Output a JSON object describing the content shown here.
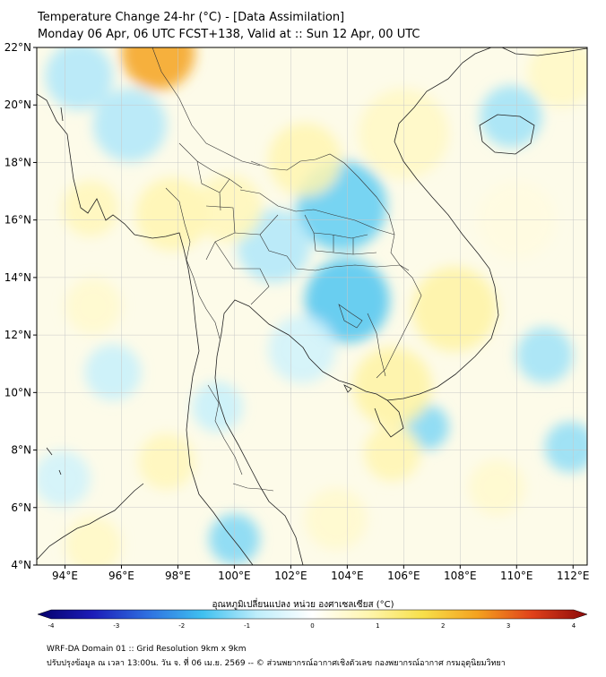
{
  "title": {
    "line1": "Temperature Change 24-hr (°C) - [Data Assimilation]",
    "line2": "Monday 06 Apr, 06 UTC FCST+138, Valid at :: Sun 12 Apr, 00 UTC"
  },
  "map": {
    "lat_range": [
      4,
      22
    ],
    "lon_range": [
      93,
      112.5
    ],
    "lat_ticks": [
      "22°N",
      "20°N",
      "18°N",
      "16°N",
      "14°N",
      "12°N",
      "10°N",
      "8°N",
      "6°N",
      "4°N"
    ],
    "lon_ticks": [
      "94°E",
      "96°E",
      "98°E",
      "100°E",
      "102°E",
      "104°E",
      "106°E",
      "108°E",
      "110°E",
      "112°E"
    ],
    "grid": true,
    "field_blobs": [
      {
        "lon": 97.3,
        "lat": 21.8,
        "value": 2.4,
        "r": 1.3
      },
      {
        "lon": 94.5,
        "lat": 21.0,
        "value": -0.9,
        "r": 1.2
      },
      {
        "lon": 96.3,
        "lat": 19.3,
        "value": -0.9,
        "r": 1.3
      },
      {
        "lon": 103.8,
        "lat": 16.5,
        "value": -1.4,
        "r": 1.6
      },
      {
        "lon": 101.4,
        "lat": 15.1,
        "value": -0.9,
        "r": 1.3
      },
      {
        "lon": 104.0,
        "lat": 13.2,
        "value": -1.5,
        "r": 1.5
      },
      {
        "lon": 102.4,
        "lat": 11.5,
        "value": -0.6,
        "r": 1.2
      },
      {
        "lon": 109.8,
        "lat": 19.6,
        "value": -1.0,
        "r": 1.1
      },
      {
        "lon": 111.0,
        "lat": 11.3,
        "value": -1.0,
        "r": 1.0
      },
      {
        "lon": 106.8,
        "lat": 8.8,
        "value": -1.2,
        "r": 0.8
      },
      {
        "lon": 111.9,
        "lat": 8.1,
        "value": -1.1,
        "r": 0.9
      },
      {
        "lon": 100.0,
        "lat": 4.9,
        "value": -1.2,
        "r": 0.9
      },
      {
        "lon": 95.7,
        "lat": 10.7,
        "value": -0.7,
        "r": 1.0
      },
      {
        "lon": 93.9,
        "lat": 7.0,
        "value": -0.6,
        "r": 1.0
      },
      {
        "lon": 99.4,
        "lat": 9.5,
        "value": -0.7,
        "r": 0.9
      },
      {
        "lon": 97.8,
        "lat": 16.2,
        "value": 0.8,
        "r": 1.3
      },
      {
        "lon": 99.8,
        "lat": 16.4,
        "value": 0.7,
        "r": 1.2
      },
      {
        "lon": 94.9,
        "lat": 16.4,
        "value": 0.7,
        "r": 1.0
      },
      {
        "lon": 102.5,
        "lat": 18.1,
        "value": 0.8,
        "r": 1.3
      },
      {
        "lon": 106.0,
        "lat": 19.0,
        "value": 0.6,
        "r": 1.6
      },
      {
        "lon": 107.8,
        "lat": 12.9,
        "value": 0.9,
        "r": 1.5
      },
      {
        "lon": 105.6,
        "lat": 10.2,
        "value": 0.9,
        "r": 1.4
      },
      {
        "lon": 111.6,
        "lat": 21.1,
        "value": 0.6,
        "r": 1.2
      },
      {
        "lon": 97.6,
        "lat": 7.6,
        "value": 0.7,
        "r": 1.0
      },
      {
        "lon": 105.6,
        "lat": 7.9,
        "value": 0.8,
        "r": 1.0
      },
      {
        "lon": 95.0,
        "lat": 13.0,
        "value": 0.5,
        "r": 1.0
      },
      {
        "lon": 103.6,
        "lat": 5.6,
        "value": 0.5,
        "r": 1.1
      },
      {
        "lon": 109.3,
        "lat": 6.7,
        "value": 0.5,
        "r": 1.0
      },
      {
        "lon": 95.0,
        "lat": 4.7,
        "value": 0.6,
        "r": 1.0
      },
      {
        "lon": 110.0,
        "lat": 16.0,
        "value": 0.3,
        "r": 1.4
      }
    ]
  },
  "colorbar": {
    "title": "อุณหภูมิเปลี่ยนแปลง หน่วย องศาเซลเซียส (°C)",
    "min": -4,
    "max": 4,
    "ticks": [
      "-4",
      "-3",
      "-2",
      "-1",
      "0",
      "1",
      "2",
      "3",
      "4"
    ],
    "colors": [
      "#05006b",
      "#1c1cb8",
      "#2e6fe0",
      "#3fc0f0",
      "#bfeefb",
      "#ffffff",
      "#fff6b0",
      "#f7e04a",
      "#f4a21f",
      "#e0411a",
      "#8c0a0a"
    ]
  },
  "footer": {
    "line1": "WRF-DA Domain 01 :: Grid Resolution 9km x 9km",
    "line2": "ปรับปรุงข้อมูล ณ เวลา 13:00น. วัน จ. ที่ 06 เม.ย. 2569 -- © ส่วนพยากรณ์อากาศเชิงตัวเลข กองพยากรณ์อากาศ กรมอุตุนิยมวิทยา"
  }
}
